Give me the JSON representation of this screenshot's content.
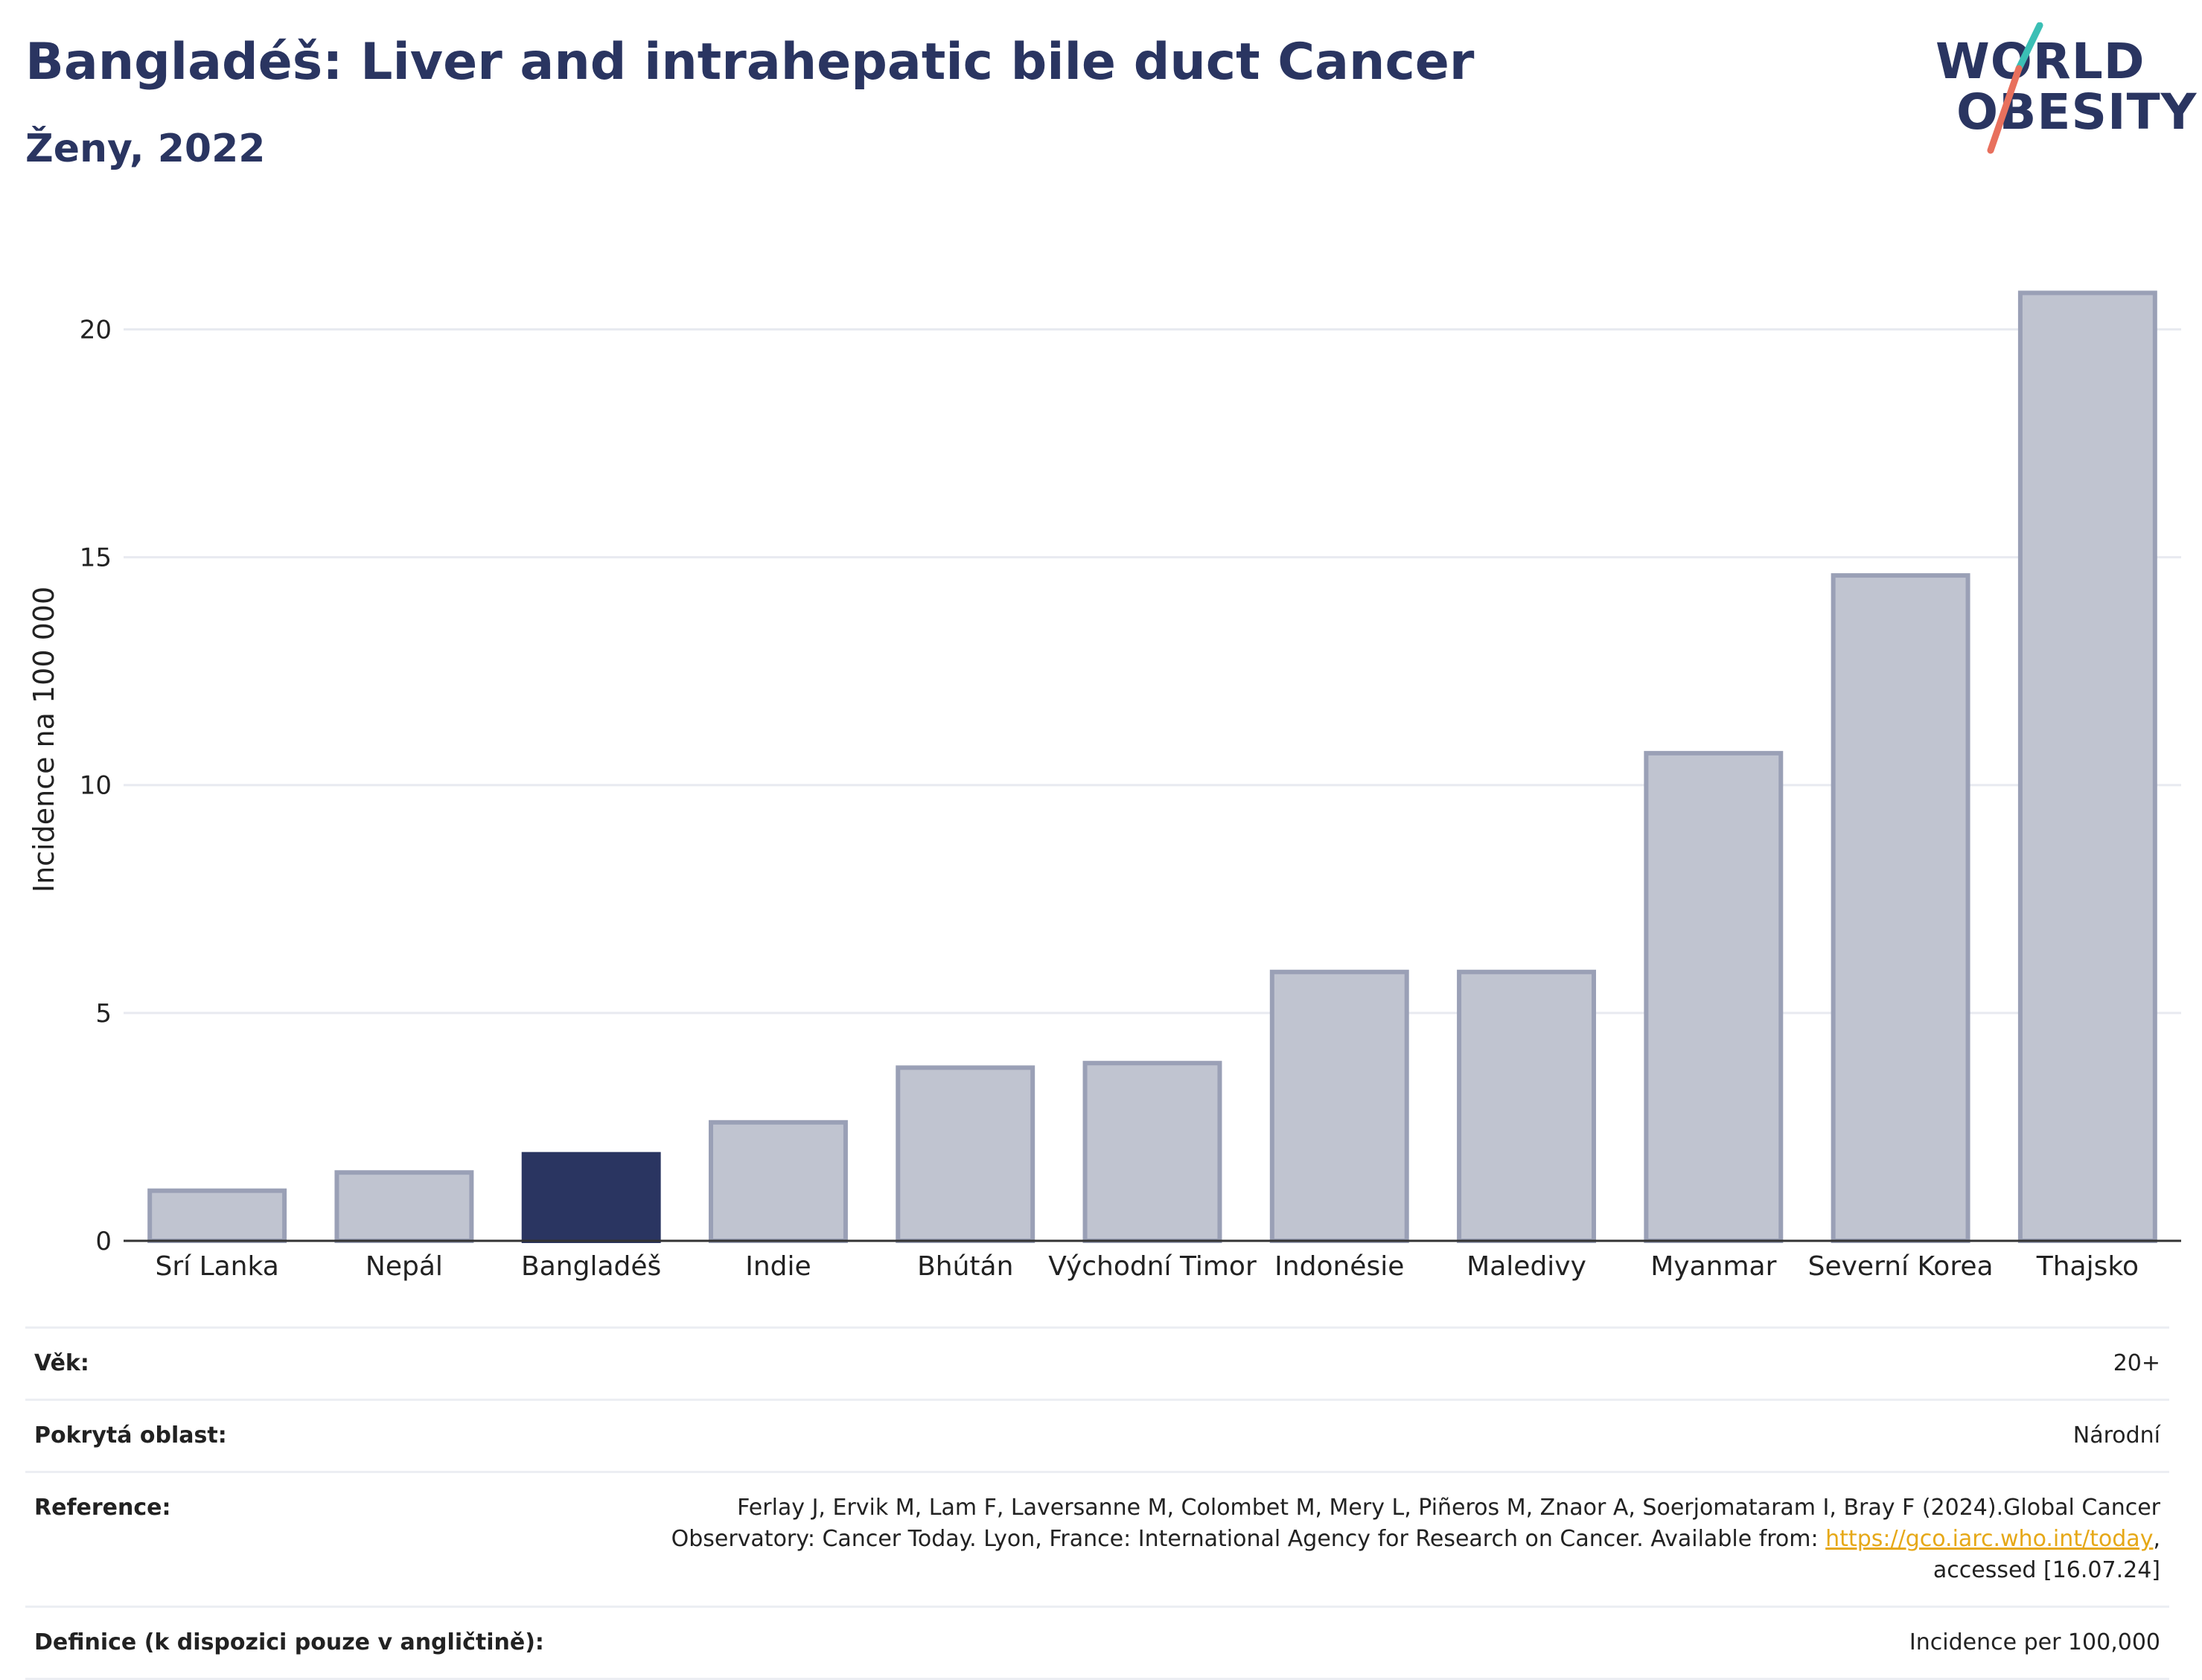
{
  "header": {
    "title": "Bangladéš: Liver and intrahepatic bile duct Cancer",
    "subtitle": "Ženy, 2022"
  },
  "logo": {
    "line1": "WORLD",
    "line2": "OBESITY",
    "colors": {
      "text": "#2a3561",
      "slash_top": "#3bbfb5",
      "slash_bottom": "#e8705d"
    }
  },
  "colors": {
    "highlight_bar": "#2a3561",
    "other_bar_fill": "#c0c4d0",
    "other_bar_stroke": "#9aa0b6",
    "grid": "#e8eaf0",
    "axis": "#333333"
  },
  "chart_data": {
    "type": "bar",
    "categories": [
      "Srí Lanka",
      "Nepál",
      "Bangladéš",
      "Indie",
      "Bhútán",
      "Východní Timor",
      "Indonésie",
      "Maledivy",
      "Myanmar",
      "Severní Korea",
      "Thajsko"
    ],
    "values": [
      1.1,
      1.5,
      1.9,
      2.6,
      3.8,
      3.9,
      5.9,
      5.9,
      10.7,
      14.6,
      20.8
    ],
    "highlight": "Bangladéš",
    "ylabel": "Incidence na 100 000",
    "xlabel": "",
    "ylim": [
      0,
      22
    ],
    "yticks": [
      0,
      5,
      10,
      15,
      20
    ],
    "grid": true
  },
  "meta": {
    "age_label": "Věk:",
    "age_value": "20+",
    "coverage_label": "Pokrytá oblast:",
    "coverage_value": "Národní",
    "reference_label": "Reference:",
    "reference_text_1": "Ferlay J, Ervik M, Lam F, Laversanne M, Colombet M, Mery L, Piñeros M, Znaor A, Soerjomataram I, Bray F (2024).Global Cancer Observatory: Cancer Today. Lyon, France: International Agency for Research on Cancer. Available from: ",
    "reference_link": "https://gco.iarc.who.int/today",
    "reference_text_2": ", accessed [16.07.24]",
    "definition_label": "Definice (k dispozici pouze v angličtině):",
    "definition_value": "Incidence per 100,000"
  }
}
